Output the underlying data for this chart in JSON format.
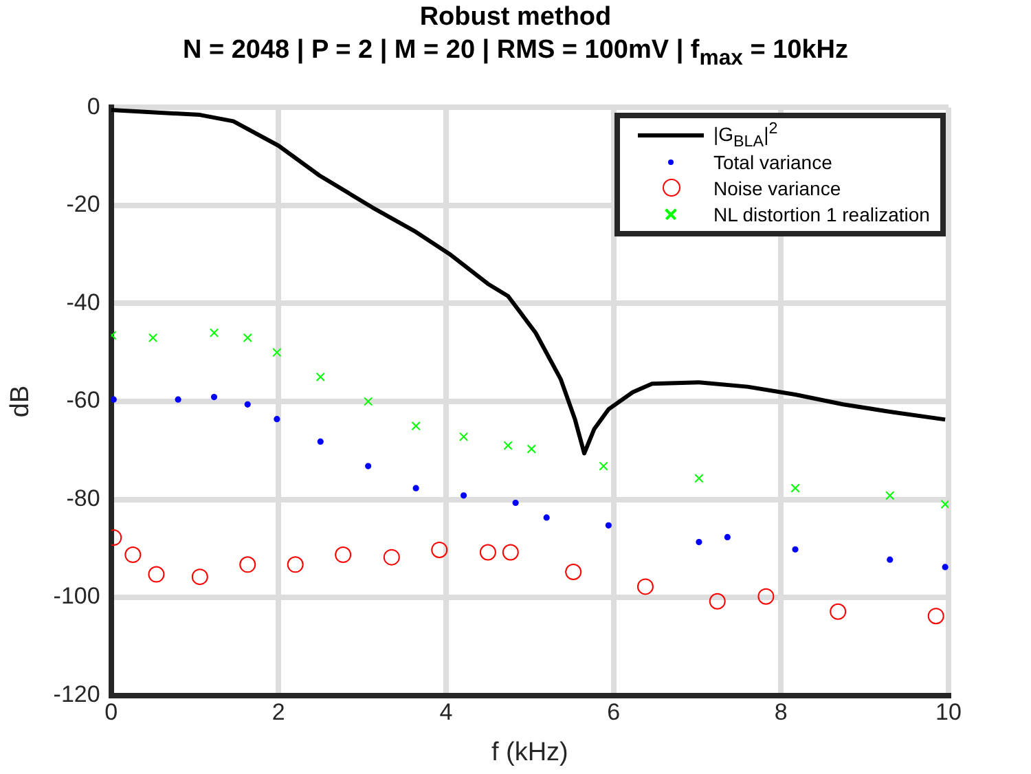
{
  "chart_data": {
    "type": "line",
    "title": "Robust method",
    "subtitle": "N = 2048 | P = 2 | M = 20 | RMS = 100mV | f$_{max}$ = 10kHz",
    "xlabel": "f (kHz)",
    "ylabel": "dB",
    "xlim": [
      0,
      10
    ],
    "xticks": [
      0,
      2,
      4,
      6,
      8,
      10
    ],
    "ylim": [
      -120,
      0
    ],
    "yticks": [
      -120,
      -100,
      -80,
      -60,
      -40,
      -20,
      0
    ],
    "grid": true,
    "legend": "top right",
    "series": [
      {
        "name": "|G$_{BLA}$|$^{2}$",
        "type": "line",
        "marker": "none",
        "line_style": "solid",
        "color": "#000000",
        "x": [
          0,
          1.06,
          1.46,
          2.0,
          2.49,
          3.12,
          3.64,
          4.04,
          4.5,
          4.74,
          5.07,
          5.37,
          5.54,
          5.65,
          5.77,
          5.94,
          6.23,
          6.46,
          7.02,
          7.6,
          8.17,
          8.74,
          9.3,
          9.96
        ],
        "values": [
          -0.5,
          -1.5,
          -2.8,
          -7.8,
          -13.9,
          -20.4,
          -25.4,
          -29.9,
          -36,
          -38.5,
          -46,
          -55.5,
          -63.7,
          -70.6,
          -65.6,
          -61.6,
          -58.1,
          -56.4,
          -56.1,
          -57,
          -58.6,
          -60.6,
          -62.1,
          -63.7
        ]
      },
      {
        "name": "Total variance",
        "type": "scatter",
        "marker": "circle",
        "color": "#0000ff",
        "x": [
          0.03,
          0.8,
          1.23,
          1.63,
          1.98,
          2.5,
          3.07,
          3.64,
          4.21,
          4.83,
          5.2,
          5.94,
          7.02,
          7.36,
          8.17,
          9.3,
          9.96
        ],
        "values": [
          -59.6,
          -59.6,
          -59.1,
          -60.6,
          -63.6,
          -68.2,
          -73.2,
          -77.7,
          -79.2,
          -80.7,
          -83.7,
          -85.3,
          -88.7,
          -87.7,
          -90.2,
          -92.3,
          -93.8
        ]
      },
      {
        "name": "Noise variance",
        "type": "scatter",
        "marker": "circle",
        "color": "#ff0000",
        "x": [
          0.03,
          0.26,
          0.54,
          1.06,
          1.63,
          2.2,
          2.77,
          3.35,
          3.92,
          4.5,
          4.77,
          5.52,
          6.38,
          7.24,
          7.82,
          8.68,
          9.85
        ],
        "values": [
          -87.8,
          -91.3,
          -95.3,
          -95.8,
          -93.3,
          -93.3,
          -91.3,
          -91.8,
          -90.3,
          -90.8,
          -90.8,
          -94.8,
          -97.8,
          -100.8,
          -99.8,
          -102.9,
          -103.8
        ]
      },
      {
        "name": "NL distortion 1 realization",
        "type": "scatter",
        "marker": "cross",
        "color": "#00ff00",
        "x": [
          0.01,
          0.5,
          1.23,
          1.63,
          1.98,
          2.5,
          3.07,
          3.64,
          4.21,
          4.74,
          5.02,
          5.88,
          7.02,
          8.17,
          9.3,
          9.96
        ],
        "values": [
          -46.5,
          -47,
          -46,
          -47,
          -50,
          -55,
          -60,
          -65,
          -67.2,
          -69,
          -69.7,
          -73.2,
          -75.7,
          -77.7,
          -79.2,
          -81
        ]
      }
    ]
  }
}
